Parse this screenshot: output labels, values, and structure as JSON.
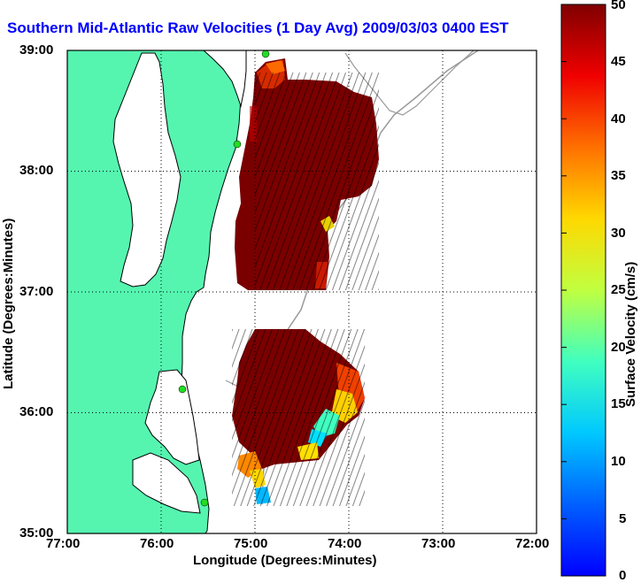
{
  "title": "Southern Mid-Atlantic Raw Velocities (1 Day Avg) 2009/03/03 0400 EST",
  "xlabel": "Longitude (Degrees:Minutes)",
  "ylabel": "Latitude (Degrees:Minutes)",
  "x_ticks": [
    "77:00",
    "76:00",
    "75:00",
    "74:00",
    "73:00",
    "72:00"
  ],
  "y_ticks": [
    "39:00",
    "38:00",
    "37:00",
    "36:00",
    "35:00"
  ],
  "colorbar": {
    "label": "Surface Velocity (cm/s)",
    "ticks": [
      "50",
      "45",
      "40",
      "35",
      "30",
      "25",
      "20",
      "15",
      "10",
      "5",
      "0"
    ],
    "min": 0,
    "max": 50
  },
  "colors": {
    "title": "#0000ff",
    "land": "#55f5b0",
    "coast": "#000000",
    "bathymetry": "#9a9a9a",
    "station": "#22dd22"
  },
  "chart_data": {
    "type": "heatmap",
    "title": "Southern Mid-Atlantic Raw Velocities (1 Day Avg) 2009/03/03 0400 EST",
    "xlabel": "Longitude (Degrees:Minutes)",
    "ylabel": "Latitude (Degrees:Minutes)",
    "xlim": [
      -77,
      -72
    ],
    "ylim": [
      35,
      39
    ],
    "grid": true,
    "colorbar_range": [
      0,
      50
    ],
    "colorbar_label": "Surface Velocity (cm/s)"
  }
}
